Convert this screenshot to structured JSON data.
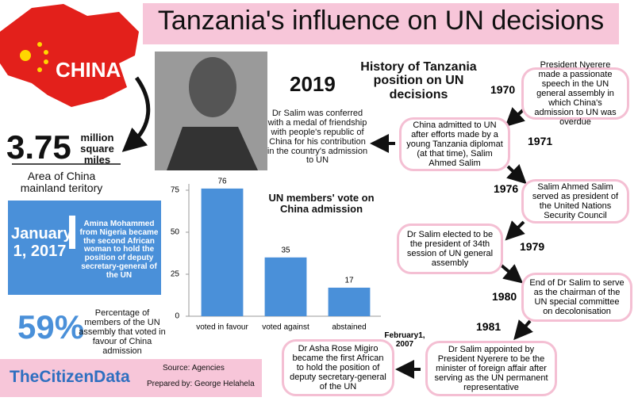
{
  "header": {
    "title": "Tanzania's influence on UN decisions"
  },
  "china": {
    "label": "CHINA"
  },
  "area": {
    "value": "3.75",
    "unit": "million square miles",
    "caption": "Area of China mainland teritory"
  },
  "highlight": {
    "date": "January 1, 2017",
    "text": "Amina Mohammed from Nigeria became the second African woman to hold the position of deputy secretary-general of the UN"
  },
  "vote_share": {
    "value": "59%",
    "text": "Percentage of members of the UN assembly that voted in favour of China admission"
  },
  "feature": {
    "year": "2019",
    "text": "Dr Salim was conferred with a medal of friendship with people's republic of China for his contribution in the country's admission to UN"
  },
  "timeline": {
    "title": "History of Tanzania position on UN decisions",
    "events": [
      {
        "year": "1970",
        "text": "President Nyerere made a passionate speech in the UN general assembly in which China's admission to UN was overdue"
      },
      {
        "year": "1971",
        "text": "China admitted to UN after efforts made by a young Tanzania diplomat (at that time), Salim Ahmed Salim"
      },
      {
        "year": "1976",
        "text": "Salim Ahmed Salim  served as president of the United Nations Security Council"
      },
      {
        "year": "1979",
        "text": "Dr Salim elected to be the president of 34th session of UN general assembly"
      },
      {
        "year": "1980",
        "text": "End of Dr Salim to serve as the chairman of the UN special committee on decolonisation"
      },
      {
        "year": "1981",
        "text": "Dr Salim appointed by President Nyerere to be the minister of foreign affair after serving as the UN permanent representative"
      },
      {
        "year": "February1, 2007",
        "text": "Dr Asha Rose Migiro became the first African to hold the position of deputy secretary-general of the UN"
      }
    ]
  },
  "footer": {
    "brand": "TheCitizenData",
    "source": "Source:  Agencies",
    "prepared_by": "Prepared by: George Helahela"
  },
  "chart_data": {
    "type": "bar",
    "title": "UN members' vote on China admission",
    "categories": [
      "voted in favour",
      "voted against",
      "abstained"
    ],
    "values": [
      76,
      35,
      17
    ],
    "color": "#4a90d9",
    "ylim": [
      0,
      80
    ],
    "yticks": [
      0,
      25,
      50,
      75
    ]
  }
}
